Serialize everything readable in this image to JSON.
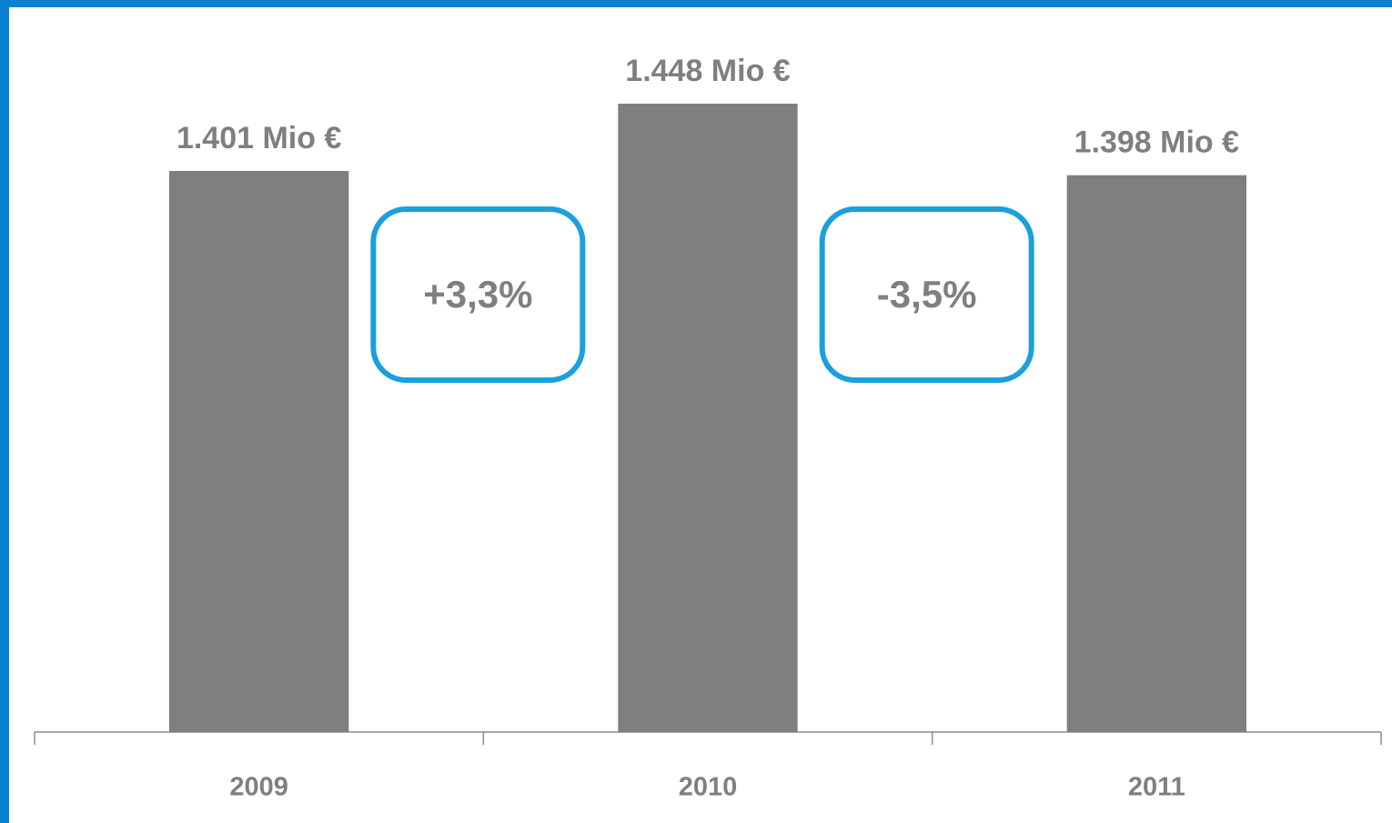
{
  "chart_data": {
    "type": "bar",
    "categories": [
      "2009",
      "2010",
      "2011"
    ],
    "values": [
      1401,
      1448,
      1398
    ],
    "value_labels": [
      "1.401 Mio €",
      "1.448 Mio €",
      "1.398 Mio €"
    ],
    "color": "#7f7f7f",
    "ylim": [
      1009,
      1495
    ],
    "annotations": [
      "+3,3%",
      "-3,5%"
    ],
    "annotation_color": "#1aa0dc"
  }
}
